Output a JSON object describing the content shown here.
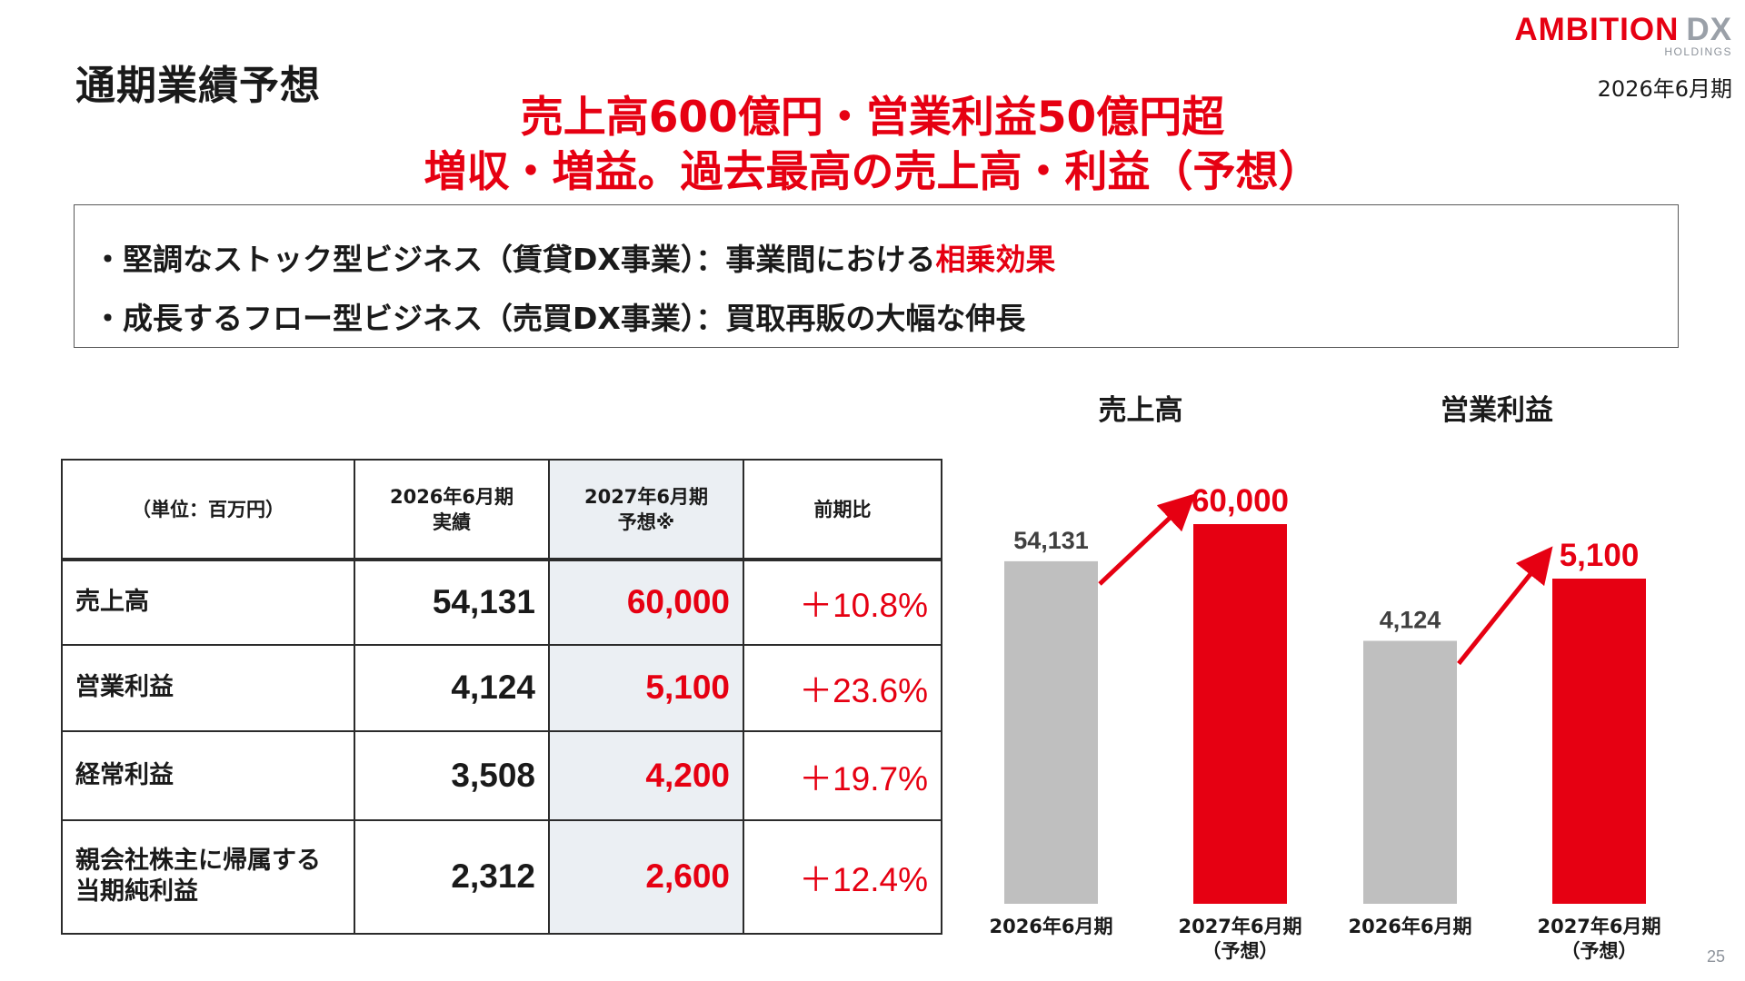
{
  "page_title": "通期業績予想",
  "logo": {
    "main": "AMBITION",
    "dx": "DX",
    "sub": "HOLDINGS"
  },
  "period_label": "2026年6月期",
  "headline": {
    "line1": "売上高600億円・営業利益50億円超",
    "line2": "増収・増益。過去最高の売上高・利益（予想）"
  },
  "summary": {
    "bullet1_prefix": "・堅調なストック型ビジネス（賃貸DX事業）：事業間における",
    "bullet1_highlight": "相乗効果",
    "bullet2": "・成長するフロー型ビジネス（売買DX事業）：買取再販の大幅な伸長"
  },
  "table": {
    "header": {
      "unit": "（単位：百万円）",
      "col1_line1": "2026年6月期",
      "col1_line2": "実績",
      "col2_line1": "2027年6月期",
      "col2_line2": "予想※",
      "col3": "前期比"
    },
    "rows": [
      {
        "label_line1": "売上高",
        "label_line2": "",
        "actual": "54,131",
        "forecast": "60,000",
        "change": "＋10.8%"
      },
      {
        "label_line1": "営業利益",
        "label_line2": "",
        "actual": "4,124",
        "forecast": "5,100",
        "change": "＋23.6%"
      },
      {
        "label_line1": "経常利益",
        "label_line2": "",
        "actual": "3,508",
        "forecast": "4,200",
        "change": "＋19.7%"
      },
      {
        "label_line1": "親会社株主に帰属する",
        "label_line2": "当期純利益",
        "actual": "2,312",
        "forecast": "2,600",
        "change": "＋12.4%"
      }
    ]
  },
  "chart_data": [
    {
      "type": "bar",
      "title": "売上高",
      "categories": [
        "2026年6月期",
        "2027年6月期（予想）"
      ],
      "category_labels": [
        [
          "2026年6月期"
        ],
        [
          "2027年6月期",
          "（予想）"
        ]
      ],
      "values": [
        54131,
        60000
      ],
      "value_labels": [
        "54,131",
        "60,000"
      ],
      "colors": [
        "#bfbfbf",
        "#e60012"
      ],
      "label_colors": [
        "#404040",
        "#e60012"
      ]
    },
    {
      "type": "bar",
      "title": "営業利益",
      "categories": [
        "2026年6月期",
        "2027年6月期（予想）"
      ],
      "category_labels": [
        [
          "2026年6月期"
        ],
        [
          "2027年6月期",
          "（予想）"
        ]
      ],
      "values": [
        4124,
        5100
      ],
      "value_labels": [
        "4,124",
        "5,100"
      ],
      "colors": [
        "#bfbfbf",
        "#e60012"
      ],
      "label_colors": [
        "#404040",
        "#e60012"
      ]
    }
  ],
  "page_number": "25"
}
